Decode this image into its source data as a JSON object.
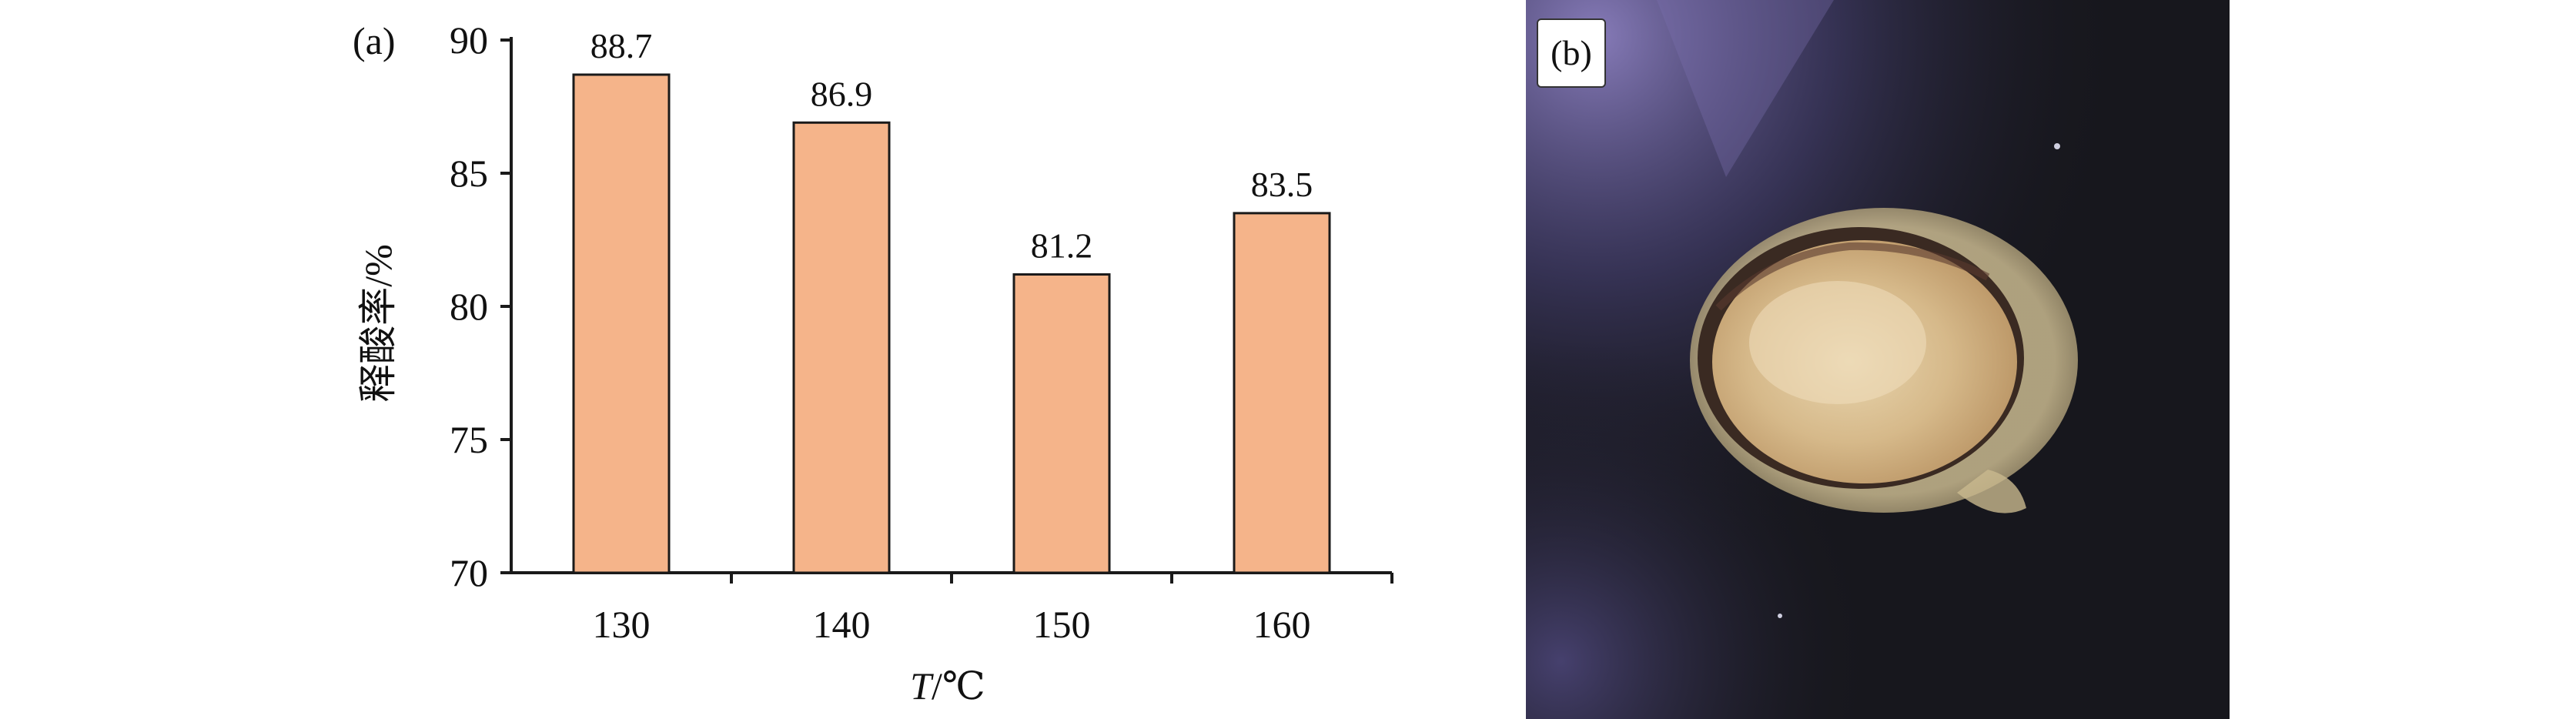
{
  "panel_a": {
    "label": "(a)"
  },
  "panel_b": {
    "label": "(b)"
  },
  "chart_data": {
    "type": "bar",
    "categories": [
      "130",
      "140",
      "150",
      "160"
    ],
    "values": [
      88.7,
      86.9,
      81.2,
      83.5
    ],
    "value_labels": [
      "88.7",
      "86.9",
      "81.2",
      "83.5"
    ],
    "title": "",
    "xlabel_italic": "T",
    "xlabel_rest": "/℃",
    "ylabel": "释酸率/%",
    "ylim": [
      70,
      90
    ],
    "yticks": [
      {
        "value": 70,
        "label": "70"
      },
      {
        "value": 75,
        "label": "75"
      },
      {
        "value": 80,
        "label": "80"
      },
      {
        "value": 85,
        "label": "85"
      },
      {
        "value": 90,
        "label": "90"
      }
    ],
    "grid": false,
    "colors": {
      "bar_fill": "#F5B48A",
      "bar_stroke": "#1a1a1a",
      "axis": "#1a1a1a"
    }
  },
  "photo": {
    "background_color": "#17171d",
    "glare_color": "#6a5f9a",
    "dish_color": "#d9c9a2"
  }
}
